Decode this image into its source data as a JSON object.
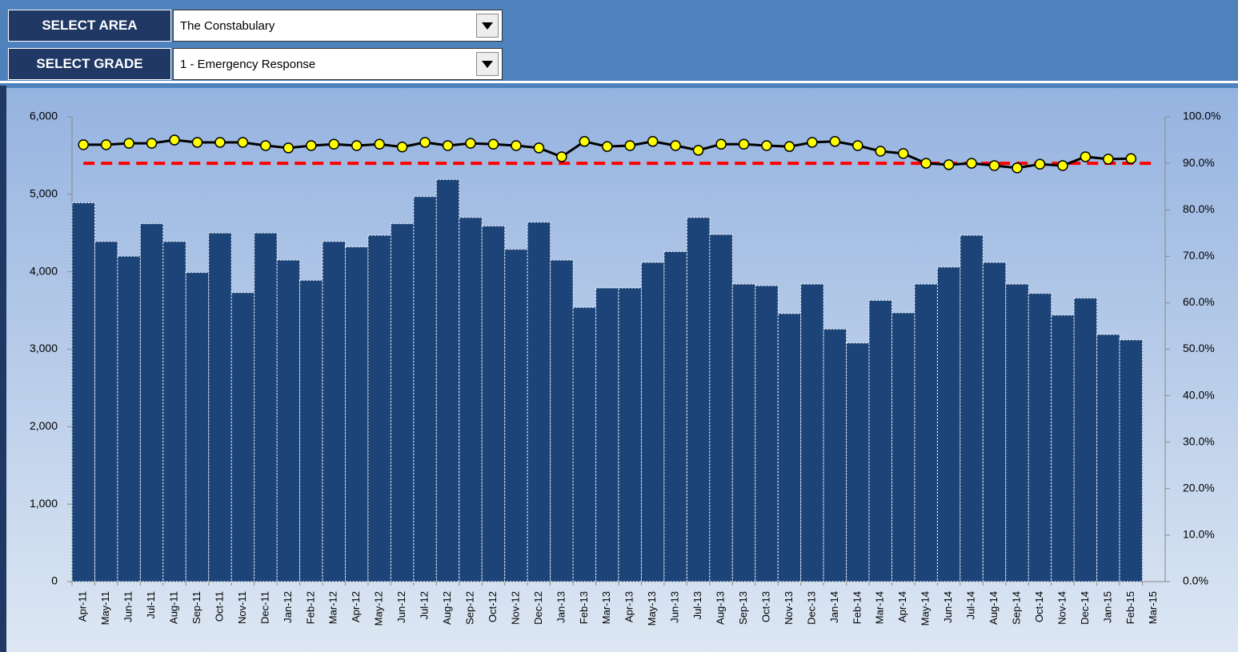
{
  "controls": [
    {
      "label": "SELECT AREA",
      "value": "The Constabulary"
    },
    {
      "label": "SELECT GRADE",
      "value": "1 - Emergency Response"
    }
  ],
  "chart_data": {
    "type": "bar-line",
    "categories": [
      "Apr-11",
      "May-11",
      "Jun-11",
      "Jul-11",
      "Aug-11",
      "Sep-11",
      "Oct-11",
      "Nov-11",
      "Dec-11",
      "Jan-12",
      "Feb-12",
      "Mar-12",
      "Apr-12",
      "May-12",
      "Jun-12",
      "Jul-12",
      "Aug-12",
      "Sep-12",
      "Oct-12",
      "Nov-12",
      "Dec-12",
      "Jan-13",
      "Feb-13",
      "Mar-13",
      "Apr-13",
      "May-13",
      "Jun-13",
      "Jul-13",
      "Aug-13",
      "Sep-13",
      "Oct-13",
      "Nov-13",
      "Dec-13",
      "Jan-14",
      "Feb-14",
      "Mar-14",
      "Apr-14",
      "May-14",
      "Jun-14",
      "Jul-14",
      "Aug-14",
      "Sep-14",
      "Oct-14",
      "Nov-14",
      "Dec-14",
      "Jan-15",
      "Feb-15",
      "Mar-15"
    ],
    "series": [
      {
        "type": "bar",
        "color": "#1c4479",
        "values": [
          4890,
          4390,
          4200,
          4620,
          4390,
          3990,
          4500,
          3730,
          4500,
          4150,
          3890,
          4390,
          4320,
          4470,
          4620,
          4970,
          5190,
          4700,
          4590,
          4290,
          4640,
          4150,
          3540,
          3790,
          3790,
          4120,
          4260,
          4700,
          4480,
          3840,
          3820,
          3460,
          3840,
          3260,
          3080,
          3630,
          3470,
          3840,
          4060,
          4470,
          4120,
          3840,
          3720,
          3440,
          3660,
          3190,
          3120,
          null
        ]
      },
      {
        "type": "line",
        "axis": "y2",
        "color": "#000000",
        "marker_color": "#ffff00",
        "values": [
          94.0,
          94.0,
          94.3,
          94.3,
          95.0,
          94.5,
          94.5,
          94.5,
          93.8,
          93.3,
          93.8,
          94.1,
          93.8,
          94.1,
          93.5,
          94.5,
          93.8,
          94.3,
          94.1,
          93.8,
          93.3,
          91.4,
          94.7,
          93.6,
          93.8,
          94.7,
          93.8,
          92.8,
          94.1,
          94.1,
          93.8,
          93.6,
          94.5,
          94.7,
          93.8,
          92.6,
          92.1,
          90.0,
          89.7,
          90.0,
          89.5,
          89.0,
          89.8,
          89.5,
          91.4,
          90.9,
          91.0,
          null
        ]
      }
    ],
    "target": {
      "value": 90,
      "axis": "y2",
      "color": "#ff0000"
    },
    "ylim": [
      0,
      6000
    ],
    "yticks": [
      0,
      {
        "value": 1000,
        "label": "1,000"
      },
      {
        "value": 2000,
        "label": "2,000"
      },
      {
        "value": 3000,
        "label": "3,000"
      },
      {
        "value": 4000,
        "label": "4,000"
      },
      {
        "value": 5000,
        "label": "5,000"
      },
      {
        "value": 6000,
        "label": "6,000"
      }
    ],
    "y2lim": [
      0,
      100
    ],
    "y2ticks": [
      {
        "value": 0,
        "label": "0.0%"
      },
      {
        "value": 10,
        "label": "10.0%"
      },
      {
        "value": 20,
        "label": "20.0%"
      },
      {
        "value": 30,
        "label": "30.0%"
      },
      {
        "value": 40,
        "label": "40.0%"
      },
      {
        "value": 50,
        "label": "50.0%"
      },
      {
        "value": 60,
        "label": "60.0%"
      },
      {
        "value": 70,
        "label": "70.0%"
      },
      {
        "value": 80,
        "label": "80.0%"
      },
      {
        "value": 90,
        "label": "90.0%"
      },
      {
        "value": 100,
        "label": "100.0%"
      }
    ]
  }
}
